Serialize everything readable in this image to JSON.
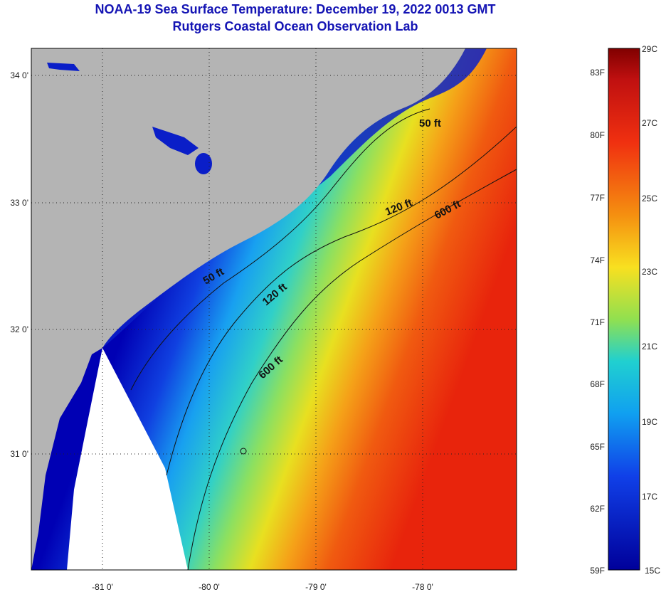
{
  "title": {
    "line1": "NOAA-19 Sea Surface Temperature:  December 19, 2022 0013 GMT",
    "line2": "Rutgers Coastal Ocean Observation Lab"
  },
  "map": {
    "lat_ticks": [
      "34 0'",
      "33 0'",
      "32 0'",
      "31 0'"
    ],
    "lon_ticks": [
      "-81 0'",
      "-80 0'",
      "-79 0'",
      "-78 0'"
    ],
    "contour_labels": [
      "50 ft",
      "50 ft",
      "120 ft",
      "120 ft",
      "600 ft",
      "600 ft"
    ],
    "colors": {
      "land": "#b4b4b4",
      "nodata": "#ffffff",
      "cold": "#0000c8",
      "warm": "#e61e0a"
    }
  },
  "colorbar": {
    "fahrenheit_labels": [
      "83F",
      "80F",
      "77F",
      "74F",
      "71F",
      "68F",
      "65F",
      "62F",
      "59F"
    ],
    "celsius_labels": [
      "29C",
      "27C",
      "25C",
      "23C",
      "21C",
      "19C",
      "17C",
      "15C"
    ]
  }
}
